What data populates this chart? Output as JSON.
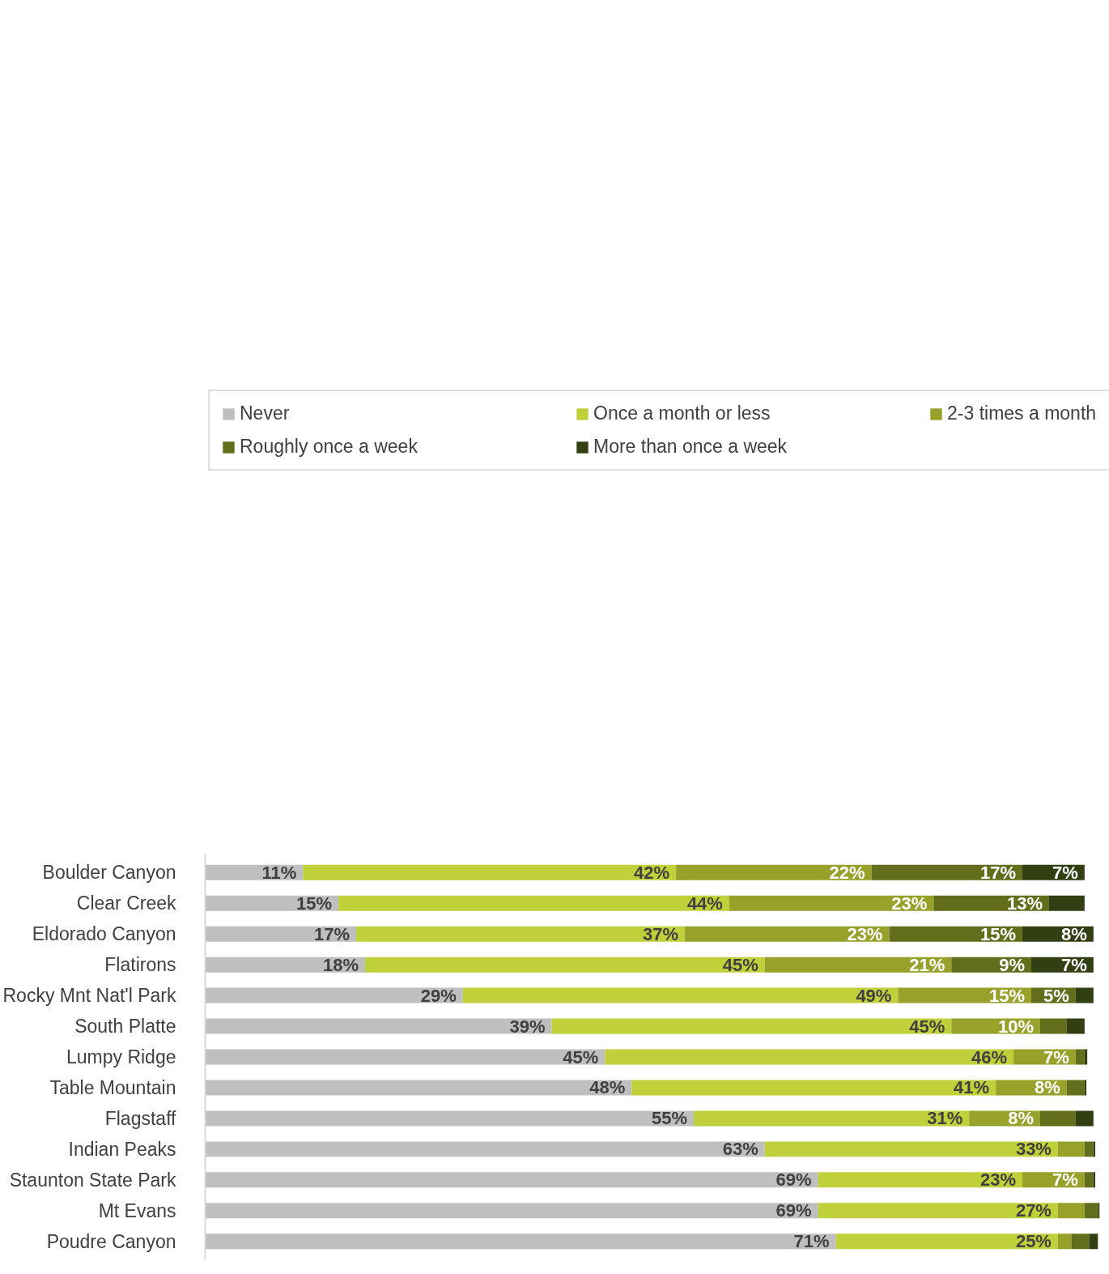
{
  "chart_data": {
    "type": "bar",
    "orientation": "horizontal",
    "stacked": true,
    "data_labels": false,
    "legend": "top",
    "grid": false,
    "categories": [
      "Boulder Canyon",
      "Clear Creek",
      "Eldorado Canyon",
      "Flatirons",
      "Rocky Mnt Nat'l Park",
      "South Platte",
      "Lumpy Ridge",
      "Table Mountain",
      "Flagstaff",
      "Indian Peaks",
      "Staunton State Park",
      "Mt Evans",
      "Poudre Canyon"
    ],
    "series": [
      {
        "name": "Never",
        "color": "#bfbfbf",
        "values": [
          11,
          15,
          17,
          18,
          29,
          39,
          45,
          48,
          55,
          63,
          69,
          69,
          71
        ],
        "value_labels": [
          "11%",
          "15%",
          "17%",
          "18%",
          "29%",
          "39%",
          "45%",
          "48%",
          "55%",
          "63%",
          "69%",
          "69%",
          "71%"
        ]
      },
      {
        "name": "Once a month or less",
        "color": "#c0d03a",
        "values": [
          42,
          44,
          37,
          45,
          49,
          45,
          46,
          41,
          31,
          33,
          23,
          27,
          25
        ],
        "value_labels": [
          "42%",
          "44%",
          "37%",
          "45%",
          "49%",
          "45%",
          "46%",
          "41%",
          "31%",
          "33%",
          "23%",
          "27%",
          "25%"
        ]
      },
      {
        "name": "2-3 times a month",
        "color": "#98a22a",
        "values": [
          22,
          23,
          23,
          21,
          15,
          10,
          7,
          8,
          8,
          3,
          7,
          3,
          1.5
        ],
        "value_labels": [
          "22%",
          "23%",
          "23%",
          "21%",
          "15%",
          "10%",
          "7%",
          "8%",
          "8%",
          null,
          "7%",
          null,
          null
        ]
      },
      {
        "name": "Roughly once a week",
        "color": "#626e1c",
        "values": [
          17,
          13,
          15,
          9,
          5,
          3,
          1,
          2,
          4,
          1,
          1,
          1.5,
          2
        ],
        "value_labels": [
          "17%",
          "13%",
          "15%",
          "9%",
          "5%",
          null,
          null,
          null,
          null,
          null,
          null,
          null,
          null
        ]
      },
      {
        "name": "More than once a week",
        "color": "#323f12",
        "values": [
          7,
          4,
          8,
          7,
          2,
          2,
          0.3,
          0.2,
          2,
          0.2,
          0.2,
          0.2,
          1
        ],
        "value_labels": [
          "7%",
          null,
          "8%",
          "7%",
          null,
          null,
          null,
          null,
          null,
          null,
          null,
          null,
          null
        ]
      }
    ]
  }
}
